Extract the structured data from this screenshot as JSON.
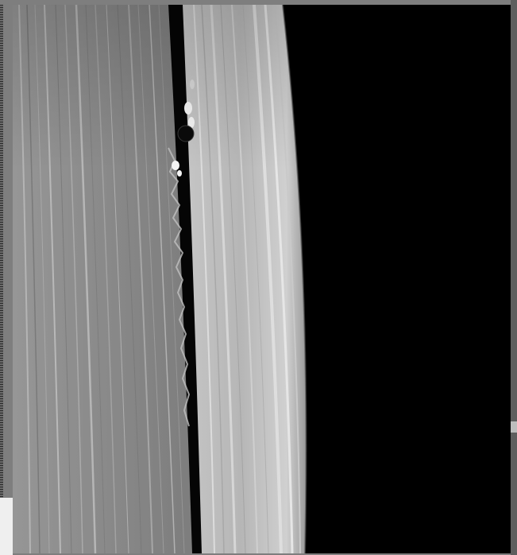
{
  "image": {
    "subject": "planetary-rings-with-moonlet-gap",
    "colors": {
      "space": "#000000",
      "inner_ring_base": "#8c8c8c",
      "outer_ring_base": "#bdbdbd",
      "gap": "#050505",
      "frame": "#7e7e7e"
    }
  }
}
